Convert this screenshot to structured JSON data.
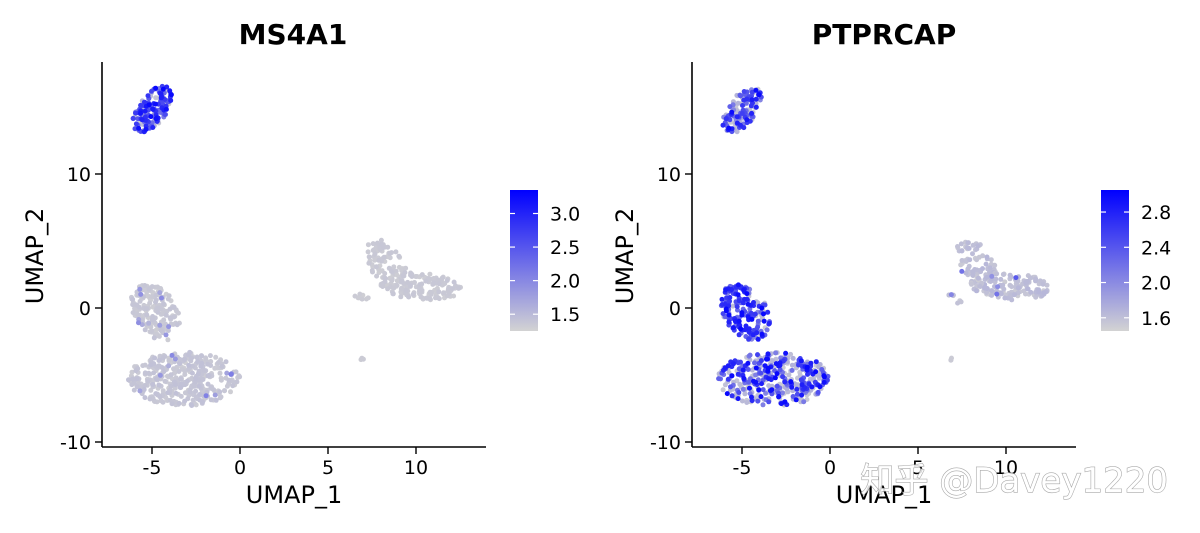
{
  "watermark": "知乎 @Davey1220",
  "chart_data": [
    {
      "type": "scatter",
      "title": "MS4A1",
      "xlabel": "UMAP_1",
      "ylabel": "UMAP_2",
      "xlim": [
        -8,
        14
      ],
      "ylim": [
        -10.3,
        18.5
      ],
      "xticks": [
        -5,
        0,
        5,
        10
      ],
      "xtick_labels": [
        "-5",
        "0",
        "5",
        "10"
      ],
      "yticks": [
        -10,
        0,
        10
      ],
      "ytick_labels": [
        "-10",
        "0",
        "10"
      ],
      "legend_position": "right",
      "colorbar": {
        "low_color": "#d3d3d3",
        "high_color": "#0000ff",
        "min": 1.25,
        "max": 3.35,
        "ticks": [
          1.5,
          2.0,
          2.5,
          3.0
        ],
        "tick_labels": [
          "1.5",
          "2.0",
          "2.5",
          "3.0"
        ]
      },
      "clusters": [
        {
          "name": "top",
          "center": [
            -5.0,
            14.8
          ],
          "rx": 0.85,
          "ry": 1.9,
          "rot": -25,
          "n": 150,
          "min": 1.3,
          "max": 3.3,
          "high_frac": 0.75
        },
        {
          "name": "left-arm",
          "center": [
            -4.8,
            -0.3
          ],
          "rx": 1.3,
          "ry": 2.2,
          "rot": 20,
          "n": 170,
          "min": 1.3,
          "max": 2.0,
          "high_frac": 0.04
        },
        {
          "name": "left-body",
          "center": [
            -3.2,
            -5.3
          ],
          "rx": 3.2,
          "ry": 2.0,
          "rot": 0,
          "n": 380,
          "min": 1.3,
          "max": 2.2,
          "high_frac": 0.03
        },
        {
          "name": "right-upper",
          "center": [
            8.3,
            3.3
          ],
          "rx": 1.0,
          "ry": 1.9,
          "rot": 20,
          "n": 80,
          "min": 1.3,
          "max": 1.8,
          "high_frac": 0.0
        },
        {
          "name": "right-lower",
          "center": [
            10.3,
            1.6
          ],
          "rx": 2.3,
          "ry": 1.0,
          "rot": -5,
          "n": 150,
          "min": 1.3,
          "max": 1.8,
          "high_frac": 0.0
        },
        {
          "name": "right-tail",
          "center": [
            7.0,
            0.7
          ],
          "rx": 0.55,
          "ry": 0.25,
          "rot": -30,
          "n": 8,
          "min": 1.3,
          "max": 1.6,
          "high_frac": 0.0
        },
        {
          "name": "isolated",
          "center": [
            6.9,
            -3.8
          ],
          "rx": 0.12,
          "ry": 0.12,
          "rot": 0,
          "n": 3,
          "min": 1.3,
          "max": 1.5,
          "high_frac": 0.0
        }
      ]
    },
    {
      "type": "scatter",
      "title": "PTPRCAP",
      "xlabel": "UMAP_1",
      "ylabel": "UMAP_2",
      "xlim": [
        -8,
        14
      ],
      "ylim": [
        -10.3,
        18.5
      ],
      "xticks": [
        -5,
        0,
        5,
        10
      ],
      "xtick_labels": [
        "-5",
        "0",
        "5",
        "10"
      ],
      "yticks": [
        -10,
        0,
        10
      ],
      "ytick_labels": [
        "-10",
        "0",
        "10"
      ],
      "legend_position": "right",
      "colorbar": {
        "low_color": "#d3d3d3",
        "high_color": "#0000ff",
        "min": 1.45,
        "max": 3.05,
        "ticks": [
          1.6,
          2.0,
          2.4,
          2.8
        ],
        "tick_labels": [
          "1.6",
          "2.0",
          "2.4",
          "2.8"
        ]
      },
      "clusters": [
        {
          "name": "top",
          "center": [
            -5.0,
            14.8
          ],
          "rx": 0.85,
          "ry": 1.9,
          "rot": -25,
          "n": 150,
          "min": 1.5,
          "max": 3.0,
          "high_frac": 0.6
        },
        {
          "name": "left-arm",
          "center": [
            -4.8,
            -0.3
          ],
          "rx": 1.3,
          "ry": 2.2,
          "rot": 20,
          "n": 170,
          "min": 1.5,
          "max": 3.0,
          "high_frac": 0.85
        },
        {
          "name": "left-body",
          "center": [
            -3.2,
            -5.3
          ],
          "rx": 3.2,
          "ry": 2.0,
          "rot": 0,
          "n": 380,
          "min": 1.5,
          "max": 3.0,
          "high_frac": 0.55
        },
        {
          "name": "right-upper",
          "center": [
            8.3,
            3.3
          ],
          "rx": 1.0,
          "ry": 1.9,
          "rot": 20,
          "n": 80,
          "min": 1.5,
          "max": 2.6,
          "high_frac": 0.03
        },
        {
          "name": "right-lower",
          "center": [
            10.3,
            1.6
          ],
          "rx": 2.3,
          "ry": 1.0,
          "rot": -5,
          "n": 150,
          "min": 1.5,
          "max": 2.6,
          "high_frac": 0.03
        },
        {
          "name": "right-tail",
          "center": [
            7.0,
            0.7
          ],
          "rx": 0.55,
          "ry": 0.25,
          "rot": -30,
          "n": 8,
          "min": 1.5,
          "max": 2.2,
          "high_frac": 0.1
        },
        {
          "name": "isolated",
          "center": [
            6.9,
            -3.8
          ],
          "rx": 0.12,
          "ry": 0.12,
          "rot": 0,
          "n": 3,
          "min": 1.5,
          "max": 1.6,
          "high_frac": 0.0
        }
      ]
    }
  ]
}
